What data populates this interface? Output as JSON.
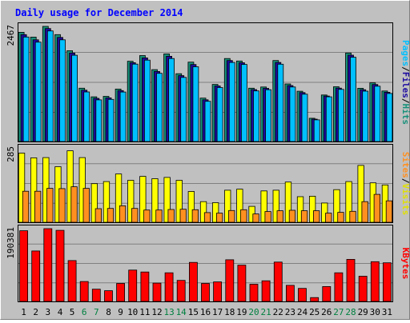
{
  "chart_data": {
    "type": "bar",
    "title": "Daily usage for December 2014",
    "x": [
      "1",
      "2",
      "3",
      "4",
      "5",
      "6",
      "7",
      "8",
      "9",
      "10",
      "11",
      "12",
      "13",
      "14",
      "15",
      "16",
      "17",
      "18",
      "19",
      "20",
      "21",
      "22",
      "23",
      "24",
      "25",
      "26",
      "27",
      "28",
      "29",
      "30",
      "31"
    ],
    "weekend_days": [
      "6",
      "7",
      "13",
      "14",
      "20",
      "21",
      "27",
      "28"
    ],
    "panels": [
      {
        "axis_max_label": "2467",
        "ymax": 2467,
        "label_parts": [
          "Pages",
          "Files",
          "Hits"
        ],
        "series": [
          {
            "name": "Hits",
            "color": "#16907a",
            "values": [
              2340,
              2238,
              2467,
              2290,
              1946,
              1143,
              958,
              968,
              1124,
              1720,
              1841,
              1540,
              1878,
              1452,
              1701,
              930,
              1224,
              1779,
              1726,
              1143,
              1168,
              1735,
              1233,
              1078,
              498,
              997,
              1174,
              1897,
              1141,
              1258,
              1083
            ]
          },
          {
            "name": "Files",
            "color": "#1c0aa0",
            "values": [
              2290,
              2180,
              2420,
              2230,
              1897,
              1100,
              925,
              935,
              1092,
              1690,
              1792,
              1500,
              1827,
              1412,
              1650,
              895,
              1190,
              1735,
              1688,
              1113,
              1140,
              1694,
              1200,
              1048,
              480,
              975,
              1145,
              1850,
              1110,
              1222,
              1056
            ]
          },
          {
            "name": "Pages",
            "color": "#00c0ff",
            "values": [
              2240,
              2130,
              2370,
              2180,
              1848,
              1063,
              892,
              902,
              1060,
              1658,
              1744,
              1462,
              1778,
              1374,
              1602,
              862,
              1157,
              1694,
              1651,
              1084,
              1110,
              1656,
              1168,
              1015,
              465,
              958,
              1117,
              1806,
              1080,
              1186,
              1030
            ]
          }
        ]
      },
      {
        "axis_max_label": "285",
        "ymax": 285,
        "label_parts": [
          "Sites",
          "Visits"
        ],
        "series": [
          {
            "name": "Visits",
            "color": "#ffff00",
            "values": [
              265,
              247,
              248,
              213,
              274,
              248,
              148,
              156,
              185,
              161,
              176,
              167,
              172,
              161,
              118,
              79,
              75,
              123,
              127,
              61,
              120,
              123,
              154,
              98,
              100,
              74,
              125,
              156,
              218,
              151,
              143
            ]
          },
          {
            "name": "Sites",
            "color": "#ff9020",
            "values": [
              119,
              119,
              130,
              129,
              136,
              130,
              52,
              53,
              63,
              53,
              47,
              47,
              49,
              50,
              48,
              37,
              35,
              45,
              48,
              32,
              41,
              44,
              46,
              44,
              44,
              35,
              38,
              42,
              79,
              107,
              82
            ]
          }
        ]
      },
      {
        "axis_max_label": "190381",
        "ymax": 190381,
        "label_parts": [
          "KBytes"
        ],
        "series": [
          {
            "name": "KBytes",
            "color": "#ff0000",
            "values": [
              185000,
              132000,
              190381,
              186000,
              107000,
              52000,
              32000,
              28000,
              47000,
              82000,
              77000,
              48000,
              75000,
              55000,
              102000,
              47000,
              51000,
              109000,
              95000,
              45000,
              54000,
              103000,
              42000,
              34000,
              10000,
              39000,
              75000,
              110000,
              66000,
              104000,
              101000
            ]
          }
        ]
      }
    ]
  }
}
